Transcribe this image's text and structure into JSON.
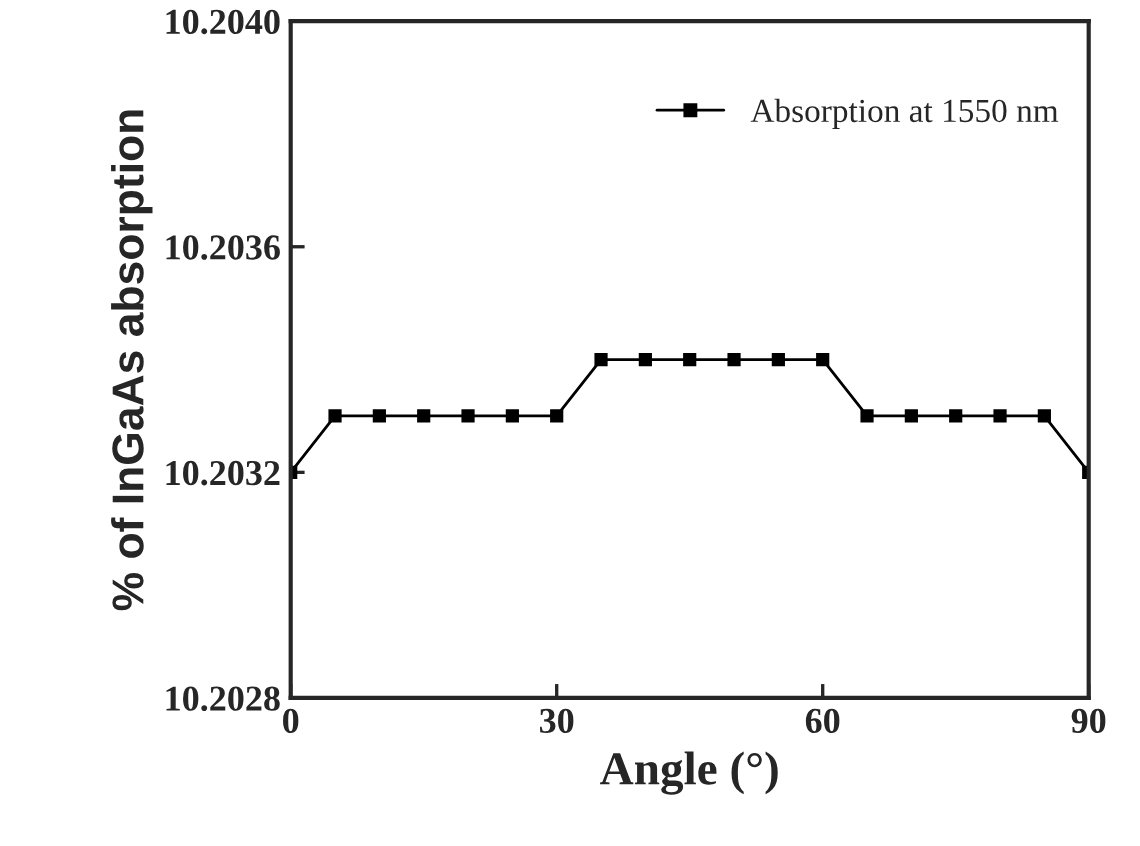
{
  "chart_data": {
    "type": "line",
    "xlabel": "Angle (°)",
    "ylabel": "% of InGaAs absorption",
    "x": [
      0,
      5,
      10,
      15,
      20,
      25,
      30,
      35,
      40,
      45,
      50,
      55,
      60,
      65,
      70,
      75,
      80,
      85,
      90
    ],
    "series": [
      {
        "name": "Absorption at 1550 nm",
        "color": "#000000",
        "values": [
          10.2032,
          10.2033,
          10.2033,
          10.2033,
          10.2033,
          10.2033,
          10.2033,
          10.2034,
          10.2034,
          10.2034,
          10.2034,
          10.2034,
          10.2034,
          10.2033,
          10.2033,
          10.2033,
          10.2033,
          10.2033,
          10.2032
        ]
      }
    ],
    "xlim": [
      0,
      90
    ],
    "xticks": [
      0,
      30,
      60,
      90
    ],
    "ylim": [
      10.2028,
      10.204
    ],
    "yticks": [
      {
        "value": 10.2028,
        "label": "10.2028"
      },
      {
        "value": 10.2032,
        "label": "10.2032"
      },
      {
        "value": 10.2036,
        "label": "10.2036"
      },
      {
        "value": 10.204,
        "label": "10.2040"
      }
    ],
    "marker": "square",
    "line_style": "solid",
    "legend": "top right",
    "grid": false
  }
}
